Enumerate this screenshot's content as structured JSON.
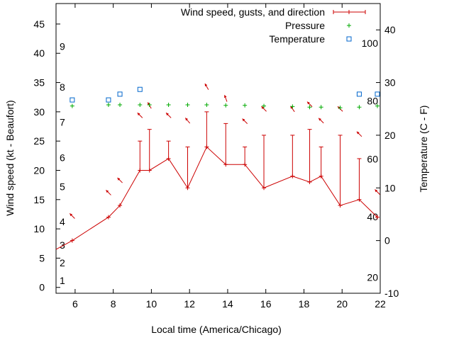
{
  "chart_data": {
    "type": "line",
    "xlabel": "Local time (America/Chicago)",
    "ylabel": "Wind speed (kt - Beaufort)",
    "y2label": "Temperature (C - F)",
    "xlim": [
      5,
      22
    ],
    "ylim": [
      -1,
      48.5
    ],
    "y2lim": [
      -10,
      45
    ],
    "x_ticks": [
      6,
      8,
      10,
      12,
      14,
      16,
      18,
      20,
      22
    ],
    "y_ticks": [
      0,
      5,
      10,
      15,
      20,
      25,
      30,
      35,
      40,
      45
    ],
    "y2_ticks": [
      -10,
      0,
      10,
      20,
      30,
      40
    ],
    "beaufort_labels": [
      {
        "text": "1",
        "y": 1.2
      },
      {
        "text": "2",
        "y": 4.2
      },
      {
        "text": "3",
        "y": 7.2
      },
      {
        "text": "4",
        "y": 11.2
      },
      {
        "text": "5",
        "y": 17.2
      },
      {
        "text": "6",
        "y": 22.2
      },
      {
        "text": "7",
        "y": 28.2
      },
      {
        "text": "8",
        "y": 34.2
      },
      {
        "text": "9",
        "y": 41.2
      }
    ],
    "fahrenheit_labels": [
      {
        "text": "20",
        "y2": -7
      },
      {
        "text": "40",
        "y2": 4.5
      },
      {
        "text": "60",
        "y2": 15.5
      },
      {
        "text": "80",
        "y2": 26.5
      },
      {
        "text": "100",
        "y2": 37.5
      }
    ],
    "legend_position": "top-right",
    "series": [
      {
        "name": "Wind speed, gusts, and direction",
        "color": "#cc0000",
        "x": [
          5.0,
          5.85,
          7.75,
          8.35,
          9.4,
          9.9,
          10.9,
          11.9,
          12.9,
          13.9,
          14.9,
          15.9,
          17.4,
          18.3,
          18.9,
          19.9,
          20.9,
          21.85
        ],
        "values": [
          6.5,
          8,
          12,
          14,
          20,
          20,
          22,
          17,
          24,
          21,
          21,
          17,
          19,
          18,
          19,
          14,
          15,
          12
        ],
        "gusts": [
          null,
          null,
          null,
          null,
          25,
          27,
          25,
          24,
          30,
          28,
          24,
          26,
          26,
          27,
          24,
          26,
          22,
          null
        ],
        "direction_arrows": [
          {
            "x": 5.85,
            "y": 12.2,
            "angle": 315
          },
          {
            "x": 7.75,
            "y": 16.2,
            "angle": 315
          },
          {
            "x": 8.35,
            "y": 18.3,
            "angle": 315
          },
          {
            "x": 9.4,
            "y": 29.4,
            "angle": 315
          },
          {
            "x": 9.9,
            "y": 31.1,
            "angle": 330
          },
          {
            "x": 10.9,
            "y": 29.4,
            "angle": 315
          },
          {
            "x": 11.9,
            "y": 28.5,
            "angle": 320
          },
          {
            "x": 12.9,
            "y": 34.3,
            "angle": 330
          },
          {
            "x": 13.9,
            "y": 32.3,
            "angle": 340
          },
          {
            "x": 14.9,
            "y": 28.4,
            "angle": 315
          },
          {
            "x": 15.9,
            "y": 30.5,
            "angle": 315
          },
          {
            "x": 17.4,
            "y": 30.5,
            "angle": 325
          },
          {
            "x": 18.3,
            "y": 31.3,
            "angle": 315
          },
          {
            "x": 18.9,
            "y": 28.5,
            "angle": 315
          },
          {
            "x": 19.9,
            "y": 30.5,
            "angle": 315
          },
          {
            "x": 20.9,
            "y": 26.2,
            "angle": 315
          },
          {
            "x": 21.85,
            "y": 16.3,
            "angle": 315
          }
        ]
      },
      {
        "name": "Pressure",
        "color": "#00aa00",
        "marker": "+",
        "x": [
          5.85,
          7.75,
          8.35,
          9.4,
          9.9,
          10.9,
          11.9,
          12.9,
          13.9,
          14.9,
          15.9,
          17.4,
          18.3,
          18.9,
          19.9,
          20.9,
          21.85
        ],
        "values": [
          31,
          31.2,
          31.2,
          31.2,
          31.2,
          31.2,
          31.2,
          31.2,
          31.1,
          31.1,
          31,
          30.9,
          30.8,
          30.8,
          30.7,
          30.8,
          31
        ]
      },
      {
        "name": "Temperature",
        "color": "#0066cc",
        "marker": "square",
        "axis": "y2",
        "x": [
          5.85,
          7.75,
          8.35,
          9.4,
          20.9,
          21.85
        ],
        "values": [
          26.7,
          26.7,
          27.8,
          28.7,
          27.8,
          27.8
        ]
      }
    ]
  }
}
